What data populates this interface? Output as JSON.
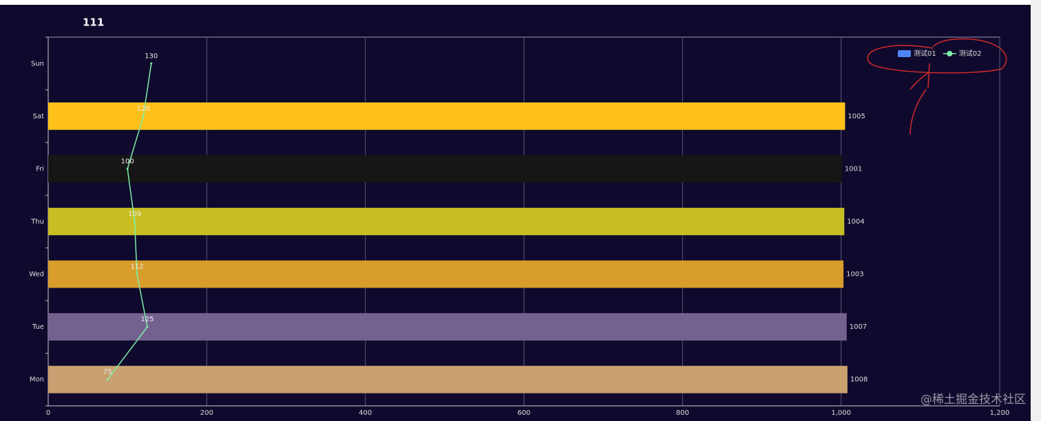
{
  "chart_data": {
    "type": "bar",
    "title": "111",
    "categories": [
      "Mon",
      "Tue",
      "Wed",
      "Thu",
      "Fri",
      "Sat",
      "Sun"
    ],
    "series": [
      {
        "name": "测试01",
        "type": "bar",
        "color": "#4f86f7",
        "colors": [
          "#c9a06f",
          "#73628f",
          "#d89d2b",
          "#c8bd22",
          "#161616",
          "#fdc11a",
          null
        ],
        "values": [
          1008,
          1007,
          1003,
          1004,
          1001,
          1005,
          null
        ]
      },
      {
        "name": "测试02",
        "type": "line",
        "color": "#7ef0a8",
        "values": [
          75,
          125,
          112,
          109,
          100,
          120,
          130
        ]
      }
    ],
    "xlim": [
      0,
      1200
    ],
    "xticks": [
      0,
      200,
      400,
      600,
      800,
      {
        "value": 1000,
        "label": "1,000"
      },
      {
        "value": 1200,
        "label": "1,200"
      }
    ],
    "grid": true,
    "legend": "top-right",
    "watermark": "@稀土掘金技术社区"
  }
}
